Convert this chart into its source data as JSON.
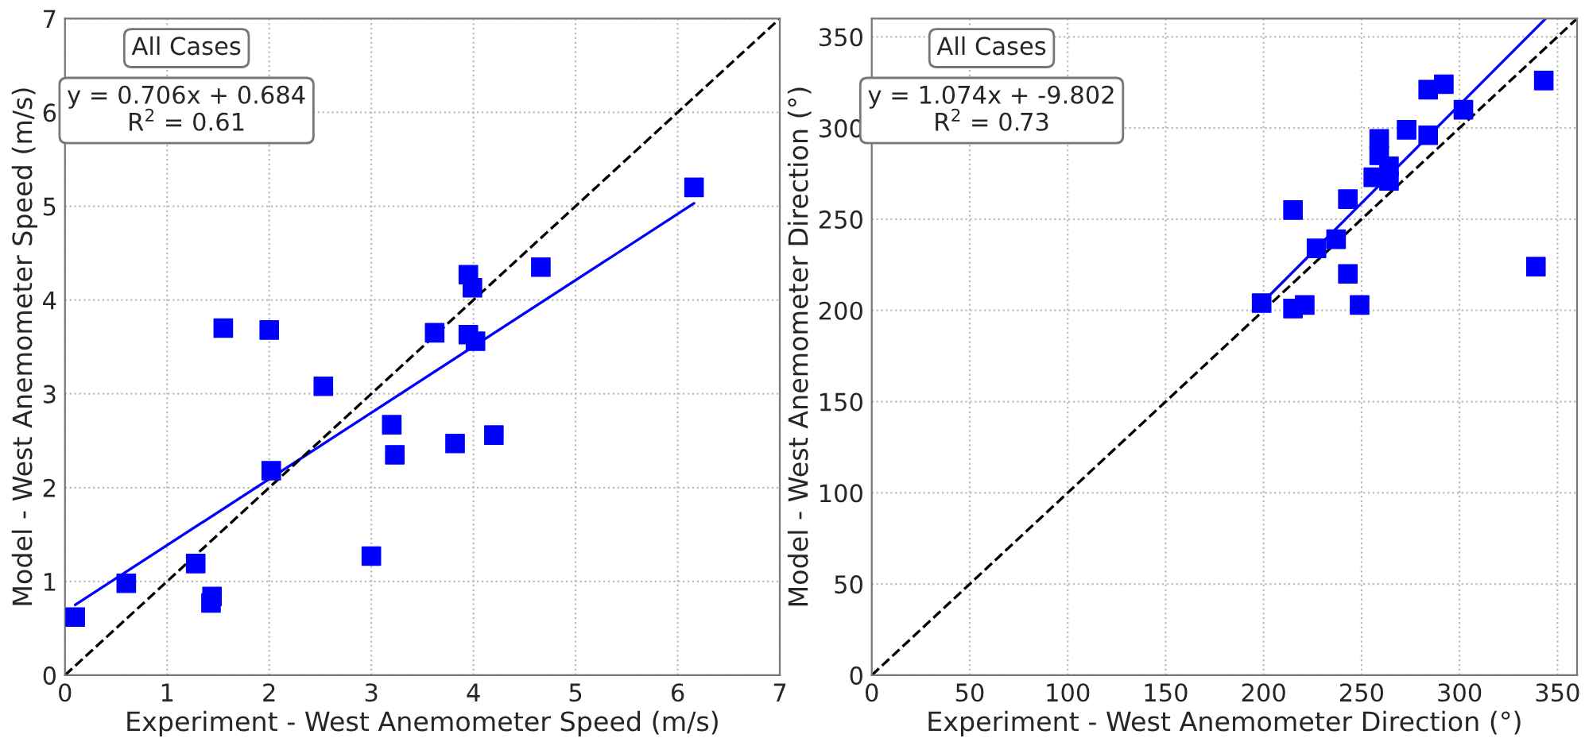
{
  "chart_data": [
    {
      "type": "scatter",
      "xlabel": "Experiment - West Anemometer Speed (m/s)",
      "ylabel": "Model - West Anemometer Speed (m/s)",
      "xlim": [
        0,
        7
      ],
      "ylim": [
        0,
        7
      ],
      "xticks": [
        0,
        1,
        2,
        3,
        4,
        5,
        6,
        7
      ],
      "yticks": [
        0,
        1,
        2,
        3,
        4,
        5,
        6,
        7
      ],
      "grid": true,
      "annotations": [
        "All Cases",
        "y = 0.706x + 0.684\nR$^{2}$ = 0.61"
      ],
      "series": [
        {
          "type": "scatter",
          "color": "#0000ff",
          "marker": "square",
          "x": [
            0.1,
            0.6,
            1.28,
            1.44,
            1.43,
            1.55,
            2.0,
            2.02,
            2.53,
            3.0,
            3.2,
            3.23,
            3.62,
            3.82,
            3.95,
            3.99,
            3.95,
            4.02,
            4.2,
            4.66,
            6.16
          ],
          "values": [
            0.62,
            0.98,
            1.19,
            0.84,
            0.77,
            3.7,
            3.68,
            2.18,
            3.08,
            1.27,
            2.67,
            2.35,
            3.65,
            2.47,
            4.27,
            4.13,
            3.63,
            3.56,
            2.56,
            4.35,
            5.2
          ]
        },
        {
          "type": "line",
          "color": "#0000ff",
          "line_style": "solid",
          "x": [
            0.1,
            6.16
          ],
          "values": [
            0.75,
            5.03
          ]
        },
        {
          "type": "line",
          "color": "#000000",
          "line_style": "dashed",
          "x": [
            0,
            7
          ],
          "values": [
            0,
            7
          ]
        }
      ]
    },
    {
      "type": "scatter",
      "xlabel": "Experiment - West Anemometer Direction (°)",
      "ylabel": "Model - West Anemometer Direction (°)",
      "xlim": [
        0,
        360
      ],
      "ylim": [
        0,
        360
      ],
      "xticks": [
        0,
        50,
        100,
        150,
        200,
        250,
        300,
        350
      ],
      "yticks": [
        0,
        50,
        100,
        150,
        200,
        250,
        300,
        350
      ],
      "grid": true,
      "annotations": [
        "All Cases",
        "y = 1.074x + -9.802\nR$^{2}$ = 0.73"
      ],
      "series": [
        {
          "type": "scatter",
          "color": "#0000ff",
          "marker": "square",
          "x": [
            199,
            215,
            215,
            221,
            227,
            237,
            243,
            243,
            249,
            256,
            259,
            259,
            264,
            264,
            273,
            284,
            284,
            292,
            302,
            339,
            343
          ],
          "values": [
            204,
            201,
            255,
            203,
            234,
            239,
            261,
            220,
            203,
            273,
            294,
            285,
            279,
            271,
            299,
            321,
            296,
            324,
            310,
            224,
            326
          ]
        },
        {
          "type": "line",
          "color": "#0000ff",
          "line_style": "solid",
          "x": [
            200,
            344
          ],
          "values": [
            205,
            360
          ]
        },
        {
          "type": "line",
          "color": "#000000",
          "line_style": "dashed",
          "x": [
            0,
            360
          ],
          "values": [
            0,
            360
          ]
        }
      ]
    }
  ]
}
